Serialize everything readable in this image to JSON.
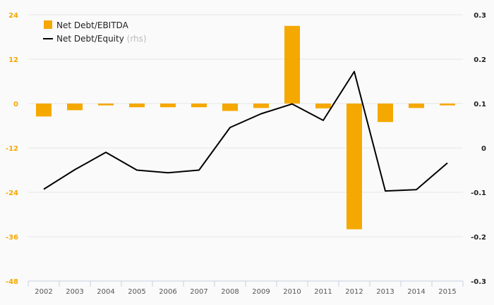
{
  "colors": {
    "bar": "#f5a800",
    "line": "#000000",
    "left_axis_text": "#f5a800",
    "right_axis_text": "#222222",
    "grid": "#e6e6e6",
    "baseline": "#c8d0e0",
    "background": "#fafafa"
  },
  "legend": {
    "bar_label": "Net Debt/EBITDA",
    "line_label": "Net Debt/Equity",
    "line_note": "(rhs)"
  },
  "chart_data": {
    "type": "bar",
    "categories": [
      "2002",
      "2003",
      "2004",
      "2005",
      "2006",
      "2007",
      "2008",
      "2009",
      "2010",
      "2011",
      "2012",
      "2013",
      "2014",
      "2015"
    ],
    "series": [
      {
        "name": "Net Debt/EBITDA",
        "type": "bar",
        "axis": "left",
        "values": [
          -3.5,
          -1.8,
          -0.5,
          -1.0,
          -1.0,
          -1.0,
          -2.0,
          -1.2,
          21.0,
          -1.3,
          -34.0,
          -5.0,
          -1.2,
          -0.5
        ]
      },
      {
        "name": "Net Debt/Equity",
        "type": "line",
        "axis": "right",
        "values": [
          -0.093,
          -0.049,
          -0.01,
          -0.05,
          -0.056,
          -0.05,
          0.046,
          0.077,
          0.099,
          0.062,
          0.172,
          -0.097,
          -0.094,
          -0.034
        ]
      }
    ],
    "left_axis": {
      "ylim": [
        -48,
        24
      ],
      "ticks": [
        -48,
        -36,
        -24,
        -12,
        0,
        12,
        24
      ]
    },
    "right_axis": {
      "ylim": [
        -0.3,
        0.3
      ],
      "ticks": [
        -0.3,
        -0.2,
        -0.1,
        0,
        0.1,
        0.2,
        0.3
      ]
    },
    "legend_position": "top-left",
    "grid": true
  }
}
